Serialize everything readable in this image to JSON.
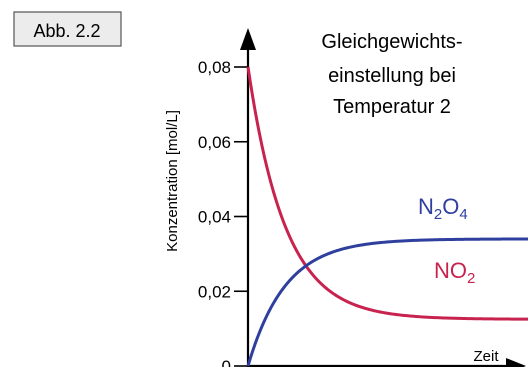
{
  "figure_label": "Abb. 2.2",
  "colors": {
    "no2": "#c8234f",
    "n2o4": "#2e3f9e",
    "axis": "#000000",
    "badge_bg": "#ececec",
    "badge_border": "#555555"
  },
  "chart_data": {
    "type": "line",
    "title_lines": [
      "Gleichgewichts-",
      "einstellung bei",
      "Temperatur 2"
    ],
    "xlabel": "Zeit",
    "ylabel": "Konzentration [mol/L]",
    "ylim": [
      0,
      0.08
    ],
    "y_ticks": [
      {
        "value": 0,
        "label": "0"
      },
      {
        "value": 0.02,
        "label": "0,02"
      },
      {
        "value": 0.04,
        "label": "0,04"
      },
      {
        "value": 0.06,
        "label": "0,06"
      },
      {
        "value": 0.08,
        "label": "0,08"
      }
    ],
    "xlim": [
      0,
      1
    ],
    "series": [
      {
        "key": "no2",
        "label_main": "NO",
        "label_sub": "2",
        "label_rest": "",
        "start": 0.08,
        "end": 0.0125,
        "rate": 7.5
      },
      {
        "key": "n2o4",
        "label_main": "N",
        "label_sub": "2",
        "label_rest": "O",
        "label_sub2": "4",
        "start": 0,
        "end": 0.034,
        "rate": 7.5
      }
    ]
  }
}
